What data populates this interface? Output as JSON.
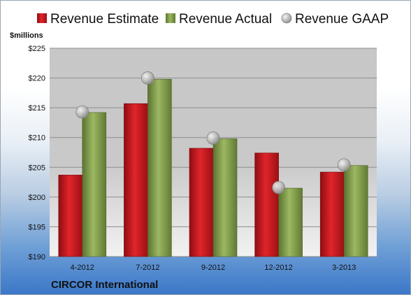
{
  "chart_data": {
    "type": "bar",
    "ylabel": "$millions",
    "ylim": [
      190,
      225
    ],
    "yticks": [
      190,
      195,
      200,
      205,
      210,
      215,
      220,
      225
    ],
    "ytick_format": "$",
    "categories": [
      "4-2012",
      "7-2012",
      "9-2012",
      "12-2012",
      "3-2013"
    ],
    "series": [
      {
        "name": "Revenue Estimate",
        "kind": "bar",
        "color": "#c8161d",
        "values": [
          203.7,
          215.7,
          208.2,
          207.4,
          204.2
        ]
      },
      {
        "name": "Revenue Actual",
        "kind": "bar",
        "color": "#7f9a48",
        "values": [
          214.2,
          219.8,
          209.8,
          201.5,
          205.3
        ]
      },
      {
        "name": "Revenue GAAP",
        "kind": "marker",
        "color": "#b5b5b5",
        "values": [
          214.3,
          220.0,
          209.9,
          201.6,
          205.4
        ]
      }
    ],
    "grid": true,
    "legend": "top",
    "company": "CIRCOR International"
  }
}
